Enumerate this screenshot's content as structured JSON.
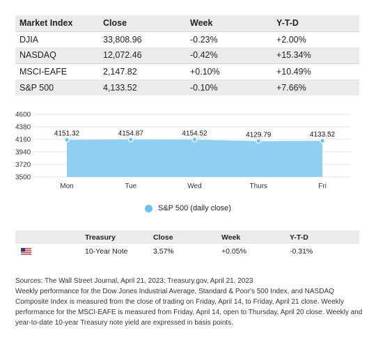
{
  "market_table": {
    "headers": [
      "Market Index",
      "Close",
      "Week",
      "Y-T-D"
    ],
    "rows": [
      [
        "DJIA",
        "33,808.96",
        "-0.23%",
        "+2.00%"
      ],
      [
        "NASDAQ",
        "12,072.46",
        "-0.42%",
        "+15.34%"
      ],
      [
        "MSCI-EAFE",
        "2,147.82",
        "+0.10%",
        "+10.49%"
      ],
      [
        "S&P 500",
        "4,133.52",
        "-0.10%",
        "+7.66%"
      ]
    ]
  },
  "chart_data": {
    "type": "area",
    "categories": [
      "Mon",
      "Tue",
      "Wed",
      "Thurs",
      "Fri"
    ],
    "series": [
      {
        "name": "S&P 500 (daily close)",
        "values": [
          4151.32,
          4154.87,
          4154.52,
          4129.79,
          4133.52
        ]
      }
    ],
    "data_labels": [
      "4151.32",
      "4154.87",
      "4154.52",
      "4129.79",
      "4133.52"
    ],
    "ylim": [
      3500,
      4600
    ],
    "yticks": [
      "4600",
      "4380",
      "4160",
      "3940",
      "3720",
      "3500"
    ],
    "ytick_values": [
      4600,
      4380,
      4160,
      3940,
      3720,
      3500
    ],
    "grid": true,
    "legend": "bottom",
    "colors": {
      "fill": "#8fd0f2",
      "point": "#6ec1ee",
      "grid": "#e3e3e3"
    }
  },
  "treasury_table": {
    "headers": [
      "",
      "Treasury",
      "Close",
      "Week",
      "Y-T-D"
    ],
    "row": {
      "flag": "us-flag-icon",
      "name": "10-Year Note",
      "close": "3.57%",
      "week": "+0.05%",
      "ytd": "-0.31%"
    }
  },
  "notes": {
    "sources": "Sources: The Wall Street Journal, April 21, 2023; Treasury.gov, April 21, 2023",
    "body": "Weekly performance for the Dow Jones Industrial Average, Standard & Poor's 500 Index, and NASDAQ Composite Index is measured from the close of trading on Friday, April 14, to Friday, April 21 close. Weekly performance for the MSCI-EAFE is measured from Friday, April 14, open to Thursday, April 20 close. Weekly and year-to-date 10-year Treasury note yield are expressed in basis points."
  }
}
